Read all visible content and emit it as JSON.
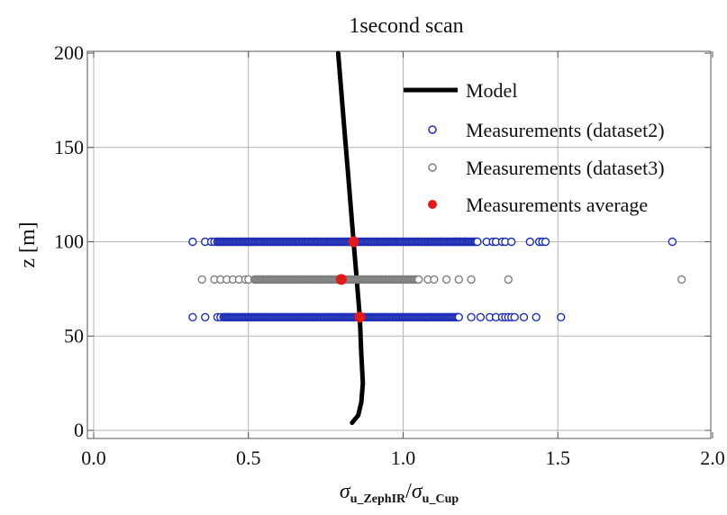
{
  "chart_data": {
    "type": "scatter",
    "title": "1second scan",
    "xlabel": {
      "sigma": "σ",
      "num_sub": "u_ZephIR",
      "slash": "/",
      "den_sub": "u_Cup"
    },
    "ylabel": "z [m]",
    "xlim": [
      0.0,
      2.0
    ],
    "ylim": [
      0,
      200
    ],
    "xticks": [
      "0.0",
      "0.5",
      "1.0",
      "1.5",
      "2.0"
    ],
    "yticks": [
      "0",
      "50",
      "100",
      "150",
      "200"
    ],
    "xtick_values": [
      0.0,
      0.5,
      1.0,
      1.5,
      2.0
    ],
    "ytick_values": [
      0,
      50,
      100,
      150,
      200
    ],
    "grid": true,
    "legend_position": "top-right",
    "series": [
      {
        "name": "Model",
        "kind": "line",
        "color": "#000000",
        "points": [
          [
            0.79,
            200
          ],
          [
            0.8,
            180
          ],
          [
            0.81,
            160
          ],
          [
            0.82,
            140
          ],
          [
            0.83,
            120
          ],
          [
            0.84,
            100
          ],
          [
            0.85,
            80
          ],
          [
            0.86,
            60
          ],
          [
            0.865,
            40
          ],
          [
            0.87,
            25
          ],
          [
            0.865,
            15
          ],
          [
            0.855,
            8
          ],
          [
            0.835,
            4
          ]
        ]
      },
      {
        "name": "Measurements (dataset2)",
        "kind": "open-marker",
        "color": "#1f2fb5",
        "levels": [
          {
            "z": 100,
            "dense_range": [
              0.4,
              1.24
            ],
            "x": [
              0.32,
              0.36,
              0.38,
              0.39,
              0.4,
              1.12,
              1.17,
              1.2,
              1.24,
              1.27,
              1.29,
              1.3,
              1.32,
              1.33,
              1.35,
              1.41,
              1.44,
              1.45,
              1.46,
              1.87
            ]
          },
          {
            "z": 60,
            "dense_range": [
              0.42,
              1.18
            ],
            "x": [
              0.32,
              0.36,
              0.4,
              0.41,
              0.42,
              1.22,
              1.25,
              1.28,
              1.3,
              1.32,
              1.33,
              1.34,
              1.35,
              1.36,
              1.39,
              1.43,
              1.51
            ]
          }
        ]
      },
      {
        "name": "Measurements (dataset3)",
        "kind": "open-marker",
        "color": "#7f7f7f",
        "levels": [
          {
            "z": 80,
            "dense_range": [
              0.52,
              1.05
            ],
            "x": [
              0.35,
              0.39,
              0.41,
              0.43,
              0.45,
              0.47,
              0.49,
              0.5,
              0.52,
              0.55,
              0.57,
              0.58,
              0.66,
              1.02,
              1.05,
              1.08,
              1.1,
              1.14,
              1.18,
              1.22,
              1.34,
              1.9
            ]
          }
        ]
      },
      {
        "name": "Measurements average",
        "kind": "filled-marker",
        "color": "#e31a1c",
        "points": [
          [
            0.84,
            100
          ],
          [
            0.8,
            80
          ],
          [
            0.86,
            60
          ]
        ]
      }
    ]
  }
}
